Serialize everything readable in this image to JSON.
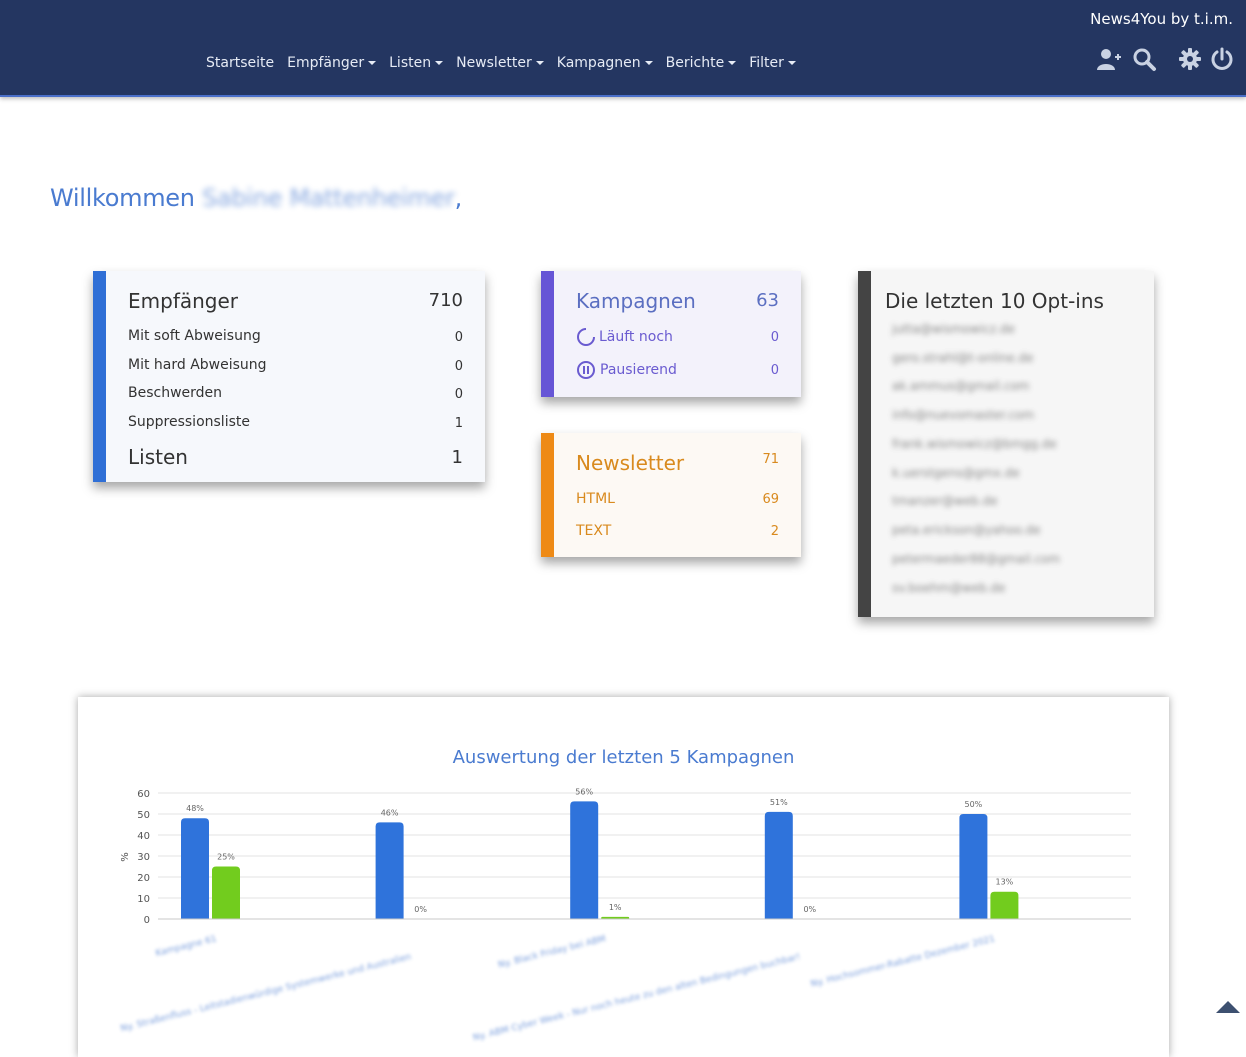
{
  "brand": "News4You by t.i.m.",
  "nav": {
    "items": [
      {
        "label": "Startseite",
        "dropdown": false
      },
      {
        "label": "Empfänger",
        "dropdown": true
      },
      {
        "label": "Listen",
        "dropdown": true
      },
      {
        "label": "Newsletter",
        "dropdown": true
      },
      {
        "label": "Kampagnen",
        "dropdown": true
      },
      {
        "label": "Berichte",
        "dropdown": true
      },
      {
        "label": "Filter",
        "dropdown": true
      }
    ],
    "icons": [
      "add-user-icon",
      "search-icon",
      "gear-icon",
      "power-icon"
    ]
  },
  "welcome": {
    "greeting": "Willkommen",
    "name": "Sabine Mattenheimer",
    "suffix": ","
  },
  "empfaenger": {
    "title": "Empfänger",
    "count": "710",
    "rows": [
      {
        "label": "Mit soft Abweisung",
        "value": "0"
      },
      {
        "label": "Mit hard Abweisung",
        "value": "0"
      },
      {
        "label": "Beschwerden",
        "value": "0"
      },
      {
        "label": "Suppressionsliste",
        "value": "1"
      }
    ],
    "listen_label": "Listen",
    "listen_count": "1"
  },
  "kampagnen": {
    "title": "Kampagnen",
    "count": "63",
    "rows": [
      {
        "label": "Läuft noch",
        "value": "0",
        "icon": "spinner-icon"
      },
      {
        "label": "Pausierend",
        "value": "0",
        "icon": "pause-circle-icon"
      }
    ]
  },
  "newsletter": {
    "title": "Newsletter",
    "count": "71",
    "rows": [
      {
        "label": "HTML",
        "value": "69"
      },
      {
        "label": "TEXT",
        "value": "2"
      }
    ]
  },
  "optins": {
    "title": "Die letzten 10 Opt-ins",
    "emails": [
      "jutta@wismowicz.de",
      "gero.strahl@t-online.de",
      "ak.ammus@gmail.com",
      "info@nuevomaster.com",
      "frank.wismowicz@bmgg.de",
      "k.uerstgens@gmx.de",
      "tmanzer@web.de",
      "peta.erickson@yahoo.de",
      "petermaeder88@gmail.com",
      "sv.boehm@web.de"
    ]
  },
  "colors": {
    "navbar": "#243661",
    "accent_blue": "#4a7bd0",
    "series1": "#2f73db",
    "series2": "#72cc1e"
  },
  "chart_data": {
    "type": "bar",
    "title": "Auswertung der letzten 5 Kampagnen",
    "ylabel": "%",
    "ylim": [
      0,
      60
    ],
    "yticks": [
      0,
      10,
      20,
      30,
      40,
      50,
      60
    ],
    "grid": true,
    "categories": [
      "Kampagne 61",
      "Ny. Straßenfluss - Leitstadienwürdige Systemwerke und Australien",
      "Ny. Black Friday bei ABM",
      "Ny. ABM Cyber Week - Nur noch heute zu den alten Bedingungen buchbar!",
      "Ny. Hochsommer-Rabatte Dezember 2021"
    ],
    "series": [
      {
        "values": [
          48,
          46,
          56,
          51,
          50
        ],
        "labels": [
          "48%",
          "46%",
          "56%",
          "51%",
          "50%"
        ]
      },
      {
        "values": [
          25,
          0,
          1,
          0,
          13
        ],
        "labels": [
          "25%",
          "0%",
          "1%",
          "0%",
          "13%"
        ]
      }
    ]
  }
}
